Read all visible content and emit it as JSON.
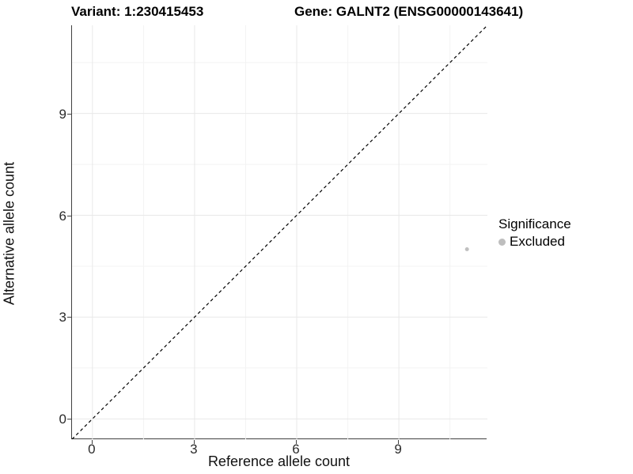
{
  "titles": {
    "variant": "Variant: 1:230415453",
    "gene": "Gene: GALNT2 (ENSG00000143641)"
  },
  "axes": {
    "x_title": "Reference allele count",
    "y_title": "Alternative allele count"
  },
  "legend": {
    "title": "Significance",
    "items": [
      {
        "label": "Excluded",
        "color": "#bebebe"
      }
    ]
  },
  "colors": {
    "major_grid": "#e8e8e8",
    "minor_grid": "#f3f3f3",
    "axis_line": "#404040",
    "reference_line": "#000000",
    "point": "#c0c0c0"
  },
  "chart_data": {
    "type": "scatter",
    "title": "Variant: 1:230415453   Gene: GALNT2 (ENSG00000143641)",
    "xlabel": "Reference allele count",
    "ylabel": "Alternative allele count",
    "xlim": [
      -0.6,
      11.6
    ],
    "ylim": [
      -0.6,
      11.6
    ],
    "xticks": [
      0,
      3,
      6,
      9
    ],
    "yticks": [
      0,
      3,
      6,
      9
    ],
    "x_minor_ticks": [
      1.5,
      4.5,
      7.5,
      10.5
    ],
    "y_minor_ticks": [
      1.5,
      4.5,
      7.5,
      10.5
    ],
    "grid": true,
    "legend_position": "right",
    "series": [
      {
        "name": "Excluded",
        "color": "#c0c0c0",
        "points": [
          {
            "x": 11,
            "y": 5
          }
        ],
        "point_radius": 2.5
      }
    ],
    "reference_line": {
      "kind": "identity",
      "slope": 1,
      "intercept": 0,
      "style": "dashed",
      "color": "#000000"
    }
  }
}
